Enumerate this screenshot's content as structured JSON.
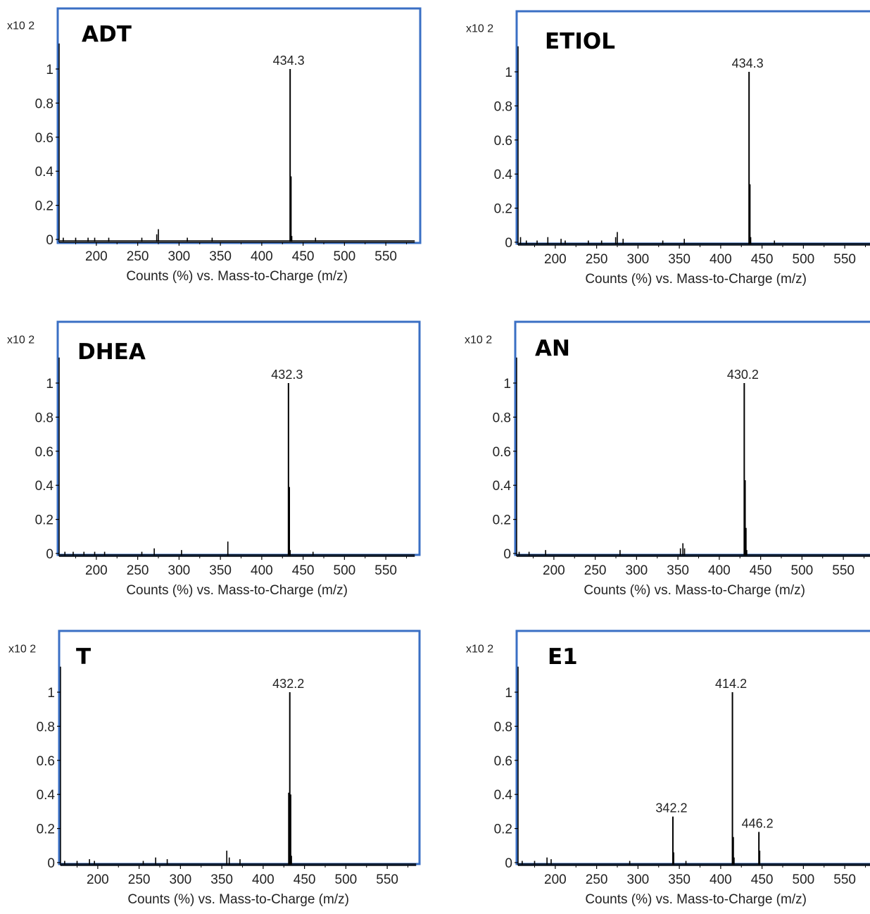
{
  "chart_data": [
    {
      "type": "bar",
      "title": "ADT",
      "xlabel": "Counts (%) vs. Mass-to-Charge (m/z)",
      "y_scale_label": "x10 2",
      "xlim": [
        155,
        585
      ],
      "xticks": [
        200,
        250,
        300,
        350,
        400,
        450,
        500,
        550
      ],
      "yticks": [
        0,
        0.2,
        0.4,
        0.6,
        0.8,
        1
      ],
      "ylim": [
        0,
        1.15
      ],
      "peaks": [
        {
          "mz": 160,
          "y": 0.01
        },
        {
          "mz": 175,
          "y": 0.01
        },
        {
          "mz": 190,
          "y": 0.01
        },
        {
          "mz": 198,
          "y": 0.01
        },
        {
          "mz": 215,
          "y": 0.01
        },
        {
          "mz": 255,
          "y": 0.01
        },
        {
          "mz": 273,
          "y": 0.03
        },
        {
          "mz": 275,
          "y": 0.06
        },
        {
          "mz": 310,
          "y": 0.01
        },
        {
          "mz": 340,
          "y": 0.01
        },
        {
          "mz": 434.3,
          "y": 1.0
        },
        {
          "mz": 435.3,
          "y": 0.37
        },
        {
          "mz": 436.3,
          "y": 0.02
        },
        {
          "mz": 465,
          "y": 0.01
        }
      ],
      "labeled_peaks": [
        {
          "mz": 434.3,
          "y": 1.0,
          "label": "434.3"
        }
      ]
    },
    {
      "type": "bar",
      "title": "ETIOL",
      "xlabel": "Counts (%) vs. Mass-to-Charge (m/z)",
      "y_scale_label": "x10 2",
      "xlim": [
        155,
        585
      ],
      "xticks": [
        200,
        250,
        300,
        350,
        400,
        450,
        500,
        550
      ],
      "yticks": [
        0,
        0.2,
        0.4,
        0.6,
        0.8,
        1
      ],
      "ylim": [
        0,
        1.15
      ],
      "peaks": [
        {
          "mz": 158,
          "y": 0.03
        },
        {
          "mz": 165,
          "y": 0.01
        },
        {
          "mz": 178,
          "y": 0.01
        },
        {
          "mz": 191,
          "y": 0.03
        },
        {
          "mz": 207,
          "y": 0.02
        },
        {
          "mz": 212,
          "y": 0.01
        },
        {
          "mz": 240,
          "y": 0.01
        },
        {
          "mz": 256,
          "y": 0.01
        },
        {
          "mz": 273,
          "y": 0.03
        },
        {
          "mz": 275,
          "y": 0.06
        },
        {
          "mz": 282,
          "y": 0.02
        },
        {
          "mz": 330,
          "y": 0.01
        },
        {
          "mz": 356,
          "y": 0.02
        },
        {
          "mz": 434.3,
          "y": 1.0
        },
        {
          "mz": 435.3,
          "y": 0.34
        },
        {
          "mz": 436.3,
          "y": 0.03
        },
        {
          "mz": 465,
          "y": 0.01
        }
      ],
      "labeled_peaks": [
        {
          "mz": 434.3,
          "y": 1.0,
          "label": "434.3"
        }
      ]
    },
    {
      "type": "bar",
      "title": "DHEA",
      "xlabel": "Counts (%) vs. Mass-to-Charge (m/z)",
      "y_scale_label": "x10 2",
      "xlim": [
        155,
        585
      ],
      "xticks": [
        200,
        250,
        300,
        350,
        400,
        450,
        500,
        550
      ],
      "yticks": [
        0,
        0.2,
        0.4,
        0.6,
        0.8,
        1
      ],
      "ylim": [
        0,
        1.15
      ],
      "peaks": [
        {
          "mz": 162,
          "y": 0.01
        },
        {
          "mz": 172,
          "y": 0.01
        },
        {
          "mz": 185,
          "y": 0.01
        },
        {
          "mz": 198,
          "y": 0.01
        },
        {
          "mz": 210,
          "y": 0.01
        },
        {
          "mz": 255,
          "y": 0.01
        },
        {
          "mz": 270,
          "y": 0.03
        },
        {
          "mz": 303,
          "y": 0.02
        },
        {
          "mz": 359,
          "y": 0.07
        },
        {
          "mz": 432.3,
          "y": 1.0
        },
        {
          "mz": 433.3,
          "y": 0.39
        },
        {
          "mz": 434.3,
          "y": 0.02
        },
        {
          "mz": 462,
          "y": 0.01
        }
      ],
      "labeled_peaks": [
        {
          "mz": 432.3,
          "y": 1.0,
          "label": "432.3"
        }
      ]
    },
    {
      "type": "bar",
      "title": "AN",
      "xlabel": "Counts (%) vs. Mass-to-Charge (m/z)",
      "y_scale_label": "x10 2",
      "xlim": [
        155,
        585
      ],
      "xticks": [
        200,
        250,
        300,
        350,
        400,
        450,
        500,
        550
      ],
      "yticks": [
        0,
        0.2,
        0.4,
        0.6,
        0.8,
        1
      ],
      "ylim": [
        0,
        1.15
      ],
      "peaks": [
        {
          "mz": 158,
          "y": 0.01
        },
        {
          "mz": 170,
          "y": 0.01
        },
        {
          "mz": 190,
          "y": 0.02
        },
        {
          "mz": 280,
          "y": 0.02
        },
        {
          "mz": 353,
          "y": 0.03
        },
        {
          "mz": 356,
          "y": 0.06
        },
        {
          "mz": 358,
          "y": 0.03
        },
        {
          "mz": 430.2,
          "y": 1.0
        },
        {
          "mz": 431.2,
          "y": 0.43
        },
        {
          "mz": 432.2,
          "y": 0.15
        },
        {
          "mz": 433.2,
          "y": 0.02
        }
      ],
      "labeled_peaks": [
        {
          "mz": 430.2,
          "y": 1.0,
          "label": "430.2"
        }
      ]
    },
    {
      "type": "bar",
      "title": "T",
      "xlabel": "Counts (%) vs. Mass-to-Charge (m/z)",
      "y_scale_label": "x10 2",
      "xlim": [
        155,
        585
      ],
      "xticks": [
        200,
        250,
        300,
        350,
        400,
        450,
        500,
        550
      ],
      "yticks": [
        0,
        0.2,
        0.4,
        0.6,
        0.8,
        1
      ],
      "ylim": [
        0,
        1.15
      ],
      "peaks": [
        {
          "mz": 160,
          "y": 0.01
        },
        {
          "mz": 175,
          "y": 0.01
        },
        {
          "mz": 190,
          "y": 0.02
        },
        {
          "mz": 196,
          "y": 0.01
        },
        {
          "mz": 255,
          "y": 0.01
        },
        {
          "mz": 270,
          "y": 0.03
        },
        {
          "mz": 284,
          "y": 0.02
        },
        {
          "mz": 356,
          "y": 0.07
        },
        {
          "mz": 359,
          "y": 0.03
        },
        {
          "mz": 372,
          "y": 0.02
        },
        {
          "mz": 431,
          "y": 0.41
        },
        {
          "mz": 432.2,
          "y": 1.0
        },
        {
          "mz": 433.2,
          "y": 0.4
        },
        {
          "mz": 434.2,
          "y": 0.04
        }
      ],
      "labeled_peaks": [
        {
          "mz": 432.2,
          "y": 1.0,
          "label": "432.2"
        }
      ]
    },
    {
      "type": "bar",
      "title": "E1",
      "xlabel": "Counts (%) vs. Mass-to-Charge (m/z)",
      "y_scale_label": "x10 2",
      "xlim": [
        155,
        585
      ],
      "xticks": [
        200,
        250,
        300,
        350,
        400,
        450,
        500,
        550
      ],
      "yticks": [
        0,
        0.2,
        0.4,
        0.6,
        0.8,
        1
      ],
      "ylim": [
        0,
        1.15
      ],
      "peaks": [
        {
          "mz": 160,
          "y": 0.01
        },
        {
          "mz": 175,
          "y": 0.01
        },
        {
          "mz": 190,
          "y": 0.03
        },
        {
          "mz": 195,
          "y": 0.02
        },
        {
          "mz": 290,
          "y": 0.01
        },
        {
          "mz": 342.2,
          "y": 0.27
        },
        {
          "mz": 343.2,
          "y": 0.06
        },
        {
          "mz": 358,
          "y": 0.01
        },
        {
          "mz": 414.2,
          "y": 1.0
        },
        {
          "mz": 415.2,
          "y": 0.15
        },
        {
          "mz": 416.2,
          "y": 0.03
        },
        {
          "mz": 446.2,
          "y": 0.18
        },
        {
          "mz": 447.2,
          "y": 0.07
        }
      ],
      "labeled_peaks": [
        {
          "mz": 342.2,
          "y": 0.27,
          "label": "342.2"
        },
        {
          "mz": 414.2,
          "y": 1.0,
          "label": "414.2"
        },
        {
          "mz": 446.2,
          "y": 0.18,
          "label": "446.2"
        }
      ]
    }
  ],
  "colors": {
    "frame": "#3a6fc4",
    "trace": "#000000",
    "text": "#222222"
  }
}
